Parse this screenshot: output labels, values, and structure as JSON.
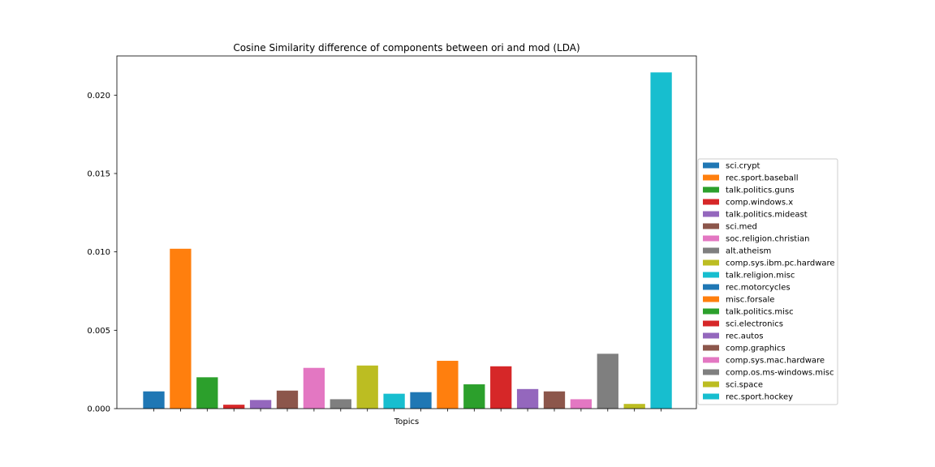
{
  "chart_data": {
    "type": "bar",
    "title": "Cosine Similarity difference of components between ori and mod (LDA)",
    "xlabel": "Topics",
    "ylabel": "",
    "ylim": [
      0,
      0.0225
    ],
    "yticks": [
      "0.000",
      "0.005",
      "0.010",
      "0.015",
      "0.020"
    ],
    "ytick_values": [
      0,
      0.005,
      0.01,
      0.015,
      0.02
    ],
    "grid": false,
    "legend_placement": "right",
    "series": [
      {
        "name": "sci.crypt",
        "value": 0.0011,
        "color": "#1f77b4"
      },
      {
        "name": "rec.sport.baseball",
        "value": 0.0102,
        "color": "#ff7f0e"
      },
      {
        "name": "talk.politics.guns",
        "value": 0.002,
        "color": "#2ca02c"
      },
      {
        "name": "comp.windows.x",
        "value": 0.00025,
        "color": "#d62728"
      },
      {
        "name": "talk.politics.mideast",
        "value": 0.00055,
        "color": "#9467bd"
      },
      {
        "name": "sci.med",
        "value": 0.00115,
        "color": "#8c564b"
      },
      {
        "name": "soc.religion.christian",
        "value": 0.0026,
        "color": "#e377c2"
      },
      {
        "name": "alt.atheism",
        "value": 0.0006,
        "color": "#7f7f7f"
      },
      {
        "name": "comp.sys.ibm.pc.hardware",
        "value": 0.00275,
        "color": "#bcbd22"
      },
      {
        "name": "talk.religion.misc",
        "value": 0.00095,
        "color": "#17becf"
      },
      {
        "name": "rec.motorcycles",
        "value": 0.00105,
        "color": "#1f77b4"
      },
      {
        "name": "misc.forsale",
        "value": 0.00305,
        "color": "#ff7f0e"
      },
      {
        "name": "talk.politics.misc",
        "value": 0.00155,
        "color": "#2ca02c"
      },
      {
        "name": "sci.electronics",
        "value": 0.0027,
        "color": "#d62728"
      },
      {
        "name": "rec.autos",
        "value": 0.00125,
        "color": "#9467bd"
      },
      {
        "name": "comp.graphics",
        "value": 0.0011,
        "color": "#8c564b"
      },
      {
        "name": "comp.sys.mac.hardware",
        "value": 0.0006,
        "color": "#e377c2"
      },
      {
        "name": "comp.os.ms-windows.misc",
        "value": 0.0035,
        "color": "#7f7f7f"
      },
      {
        "name": "sci.space",
        "value": 0.0003,
        "color": "#bcbd22"
      },
      {
        "name": "rec.sport.hockey",
        "value": 0.02145,
        "color": "#17becf"
      }
    ]
  }
}
